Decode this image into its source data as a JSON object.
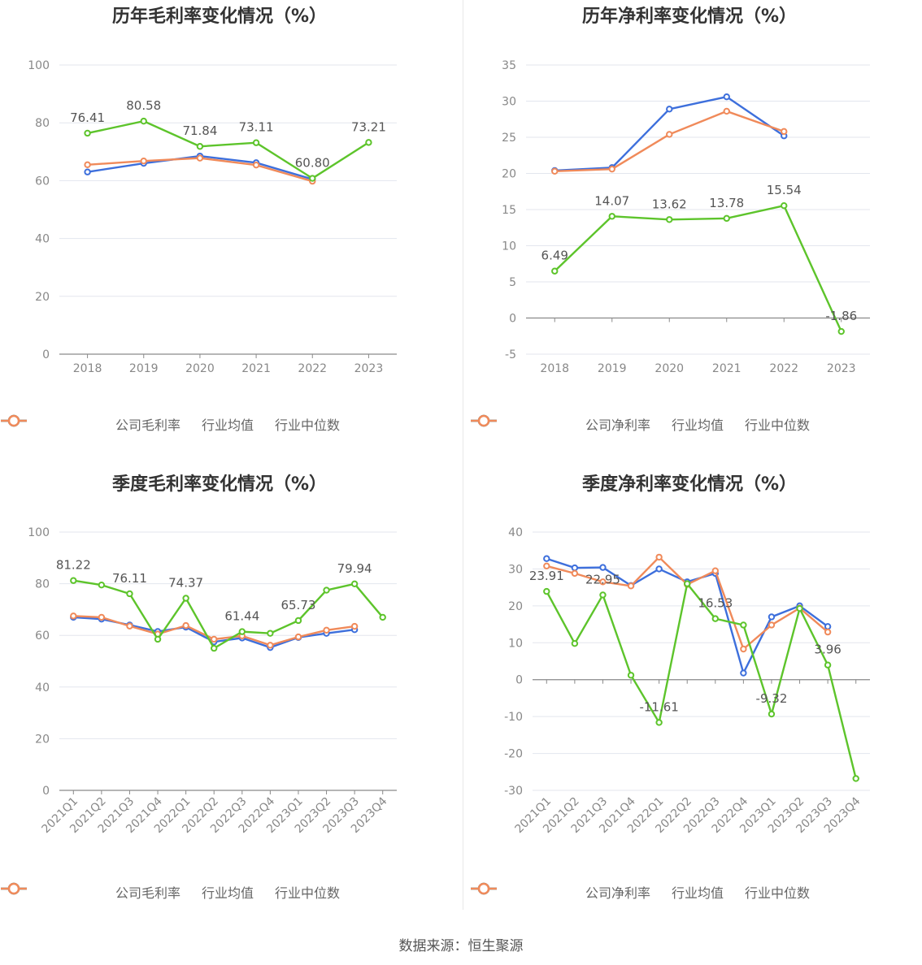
{
  "colors": {
    "company": "#5dc42b",
    "avg": "#3d6fdc",
    "median": "#f08a5a"
  },
  "source": "数据来源：恒生聚源",
  "chart_data": [
    {
      "type": "line",
      "title": "历年毛利率变化情况（%）",
      "categories": [
        "2018",
        "2019",
        "2020",
        "2021",
        "2022",
        "2023"
      ],
      "ylim": [
        0,
        100
      ],
      "yticks": [
        0,
        20,
        40,
        60,
        80,
        100
      ],
      "legend": [
        "公司毛利率",
        "行业均值",
        "行业中位数"
      ],
      "series": [
        {
          "name": "公司毛利率",
          "values": [
            76.41,
            80.58,
            71.84,
            73.11,
            60.8,
            73.21
          ]
        },
        {
          "name": "行业均值",
          "values": [
            63.0,
            66.0,
            68.5,
            66.2,
            60.5,
            null
          ]
        },
        {
          "name": "行业中位数",
          "values": [
            65.5,
            66.8,
            67.8,
            65.4,
            59.8,
            null
          ]
        }
      ],
      "labels": [
        {
          "i": 0,
          "text": "76.41"
        },
        {
          "i": 1,
          "text": "80.58"
        },
        {
          "i": 2,
          "text": "71.84"
        },
        {
          "i": 3,
          "text": "73.11"
        },
        {
          "i": 4,
          "text": "60.80"
        },
        {
          "i": 5,
          "text": "73.21"
        }
      ]
    },
    {
      "type": "line",
      "title": "历年净利率变化情况（%）",
      "categories": [
        "2018",
        "2019",
        "2020",
        "2021",
        "2022",
        "2023"
      ],
      "ylim": [
        -5,
        35
      ],
      "yticks": [
        -5,
        0,
        5,
        10,
        15,
        20,
        25,
        30,
        35
      ],
      "legend": [
        "公司净利率",
        "行业均值",
        "行业中位数"
      ],
      "series": [
        {
          "name": "公司净利率",
          "values": [
            6.49,
            14.07,
            13.62,
            13.78,
            15.54,
            -1.86
          ]
        },
        {
          "name": "行业均值",
          "values": [
            20.4,
            20.8,
            28.9,
            30.6,
            25.2,
            null
          ]
        },
        {
          "name": "行业中位数",
          "values": [
            20.3,
            20.6,
            25.4,
            28.6,
            25.8,
            null
          ]
        }
      ],
      "labels": [
        {
          "i": 0,
          "text": "6.49"
        },
        {
          "i": 1,
          "text": "14.07"
        },
        {
          "i": 2,
          "text": "13.62"
        },
        {
          "i": 3,
          "text": "13.78"
        },
        {
          "i": 4,
          "text": "15.54"
        },
        {
          "i": 5,
          "text": "-1.86"
        }
      ]
    },
    {
      "type": "line",
      "title": "季度毛利率变化情况（%）",
      "categories": [
        "2021Q1",
        "2021Q2",
        "2021Q3",
        "2021Q4",
        "2022Q1",
        "2022Q2",
        "2022Q3",
        "2022Q4",
        "2023Q1",
        "2023Q2",
        "2023Q3",
        "2023Q4"
      ],
      "ylim": [
        0,
        100
      ],
      "yticks": [
        0,
        20,
        40,
        60,
        80,
        100
      ],
      "legend": [
        "公司毛利率",
        "行业均值",
        "行业中位数"
      ],
      "series": [
        {
          "name": "公司毛利率",
          "values": [
            81.22,
            79.5,
            76.11,
            58.5,
            74.37,
            55.0,
            61.44,
            60.8,
            65.73,
            77.5,
            79.94,
            67.0
          ]
        },
        {
          "name": "行业均值",
          "values": [
            67.0,
            66.3,
            64.0,
            61.5,
            63.2,
            57.5,
            59.0,
            55.3,
            59.2,
            60.8,
            62.2,
            null
          ]
        },
        {
          "name": "行业中位数",
          "values": [
            67.5,
            67.0,
            63.6,
            60.5,
            63.8,
            58.5,
            59.8,
            56.2,
            59.4,
            62.0,
            63.5,
            null
          ]
        }
      ],
      "labels": [
        {
          "i": 0,
          "text": "81.22"
        },
        {
          "i": 2,
          "text": "76.11"
        },
        {
          "i": 4,
          "text": "74.37"
        },
        {
          "i": 6,
          "text": "61.44"
        },
        {
          "i": 8,
          "text": "65.73"
        },
        {
          "i": 10,
          "text": "79.94"
        }
      ]
    },
    {
      "type": "line",
      "title": "季度净利率变化情况（%）",
      "categories": [
        "2021Q1",
        "2021Q2",
        "2021Q3",
        "2021Q4",
        "2022Q1",
        "2022Q2",
        "2022Q3",
        "2022Q4",
        "2023Q1",
        "2023Q2",
        "2023Q3",
        "2023Q4"
      ],
      "ylim": [
        -30,
        40
      ],
      "yticks": [
        -30,
        -20,
        -10,
        0,
        10,
        20,
        30,
        40
      ],
      "legend": [
        "公司净利率",
        "行业均值",
        "行业中位数"
      ],
      "series": [
        {
          "name": "公司净利率",
          "values": [
            23.91,
            9.8,
            22.95,
            1.2,
            -11.61,
            26.0,
            16.53,
            14.8,
            -9.32,
            19.3,
            3.96,
            -26.8
          ]
        },
        {
          "name": "行业均值",
          "values": [
            32.8,
            30.3,
            30.4,
            25.5,
            30.0,
            26.5,
            28.8,
            1.8,
            17.0,
            20.0,
            14.4,
            null
          ]
        },
        {
          "name": "行业中位数",
          "values": [
            30.8,
            28.8,
            26.5,
            25.4,
            33.2,
            25.8,
            29.5,
            8.3,
            14.8,
            19.4,
            12.9,
            null
          ]
        }
      ],
      "labels": [
        {
          "i": 0,
          "text": "23.91"
        },
        {
          "i": 2,
          "text": "22.95"
        },
        {
          "i": 4,
          "text": "-11.61"
        },
        {
          "i": 6,
          "text": "16.53"
        },
        {
          "i": 8,
          "text": "-9.32"
        },
        {
          "i": 10,
          "text": "3.96"
        }
      ]
    }
  ]
}
